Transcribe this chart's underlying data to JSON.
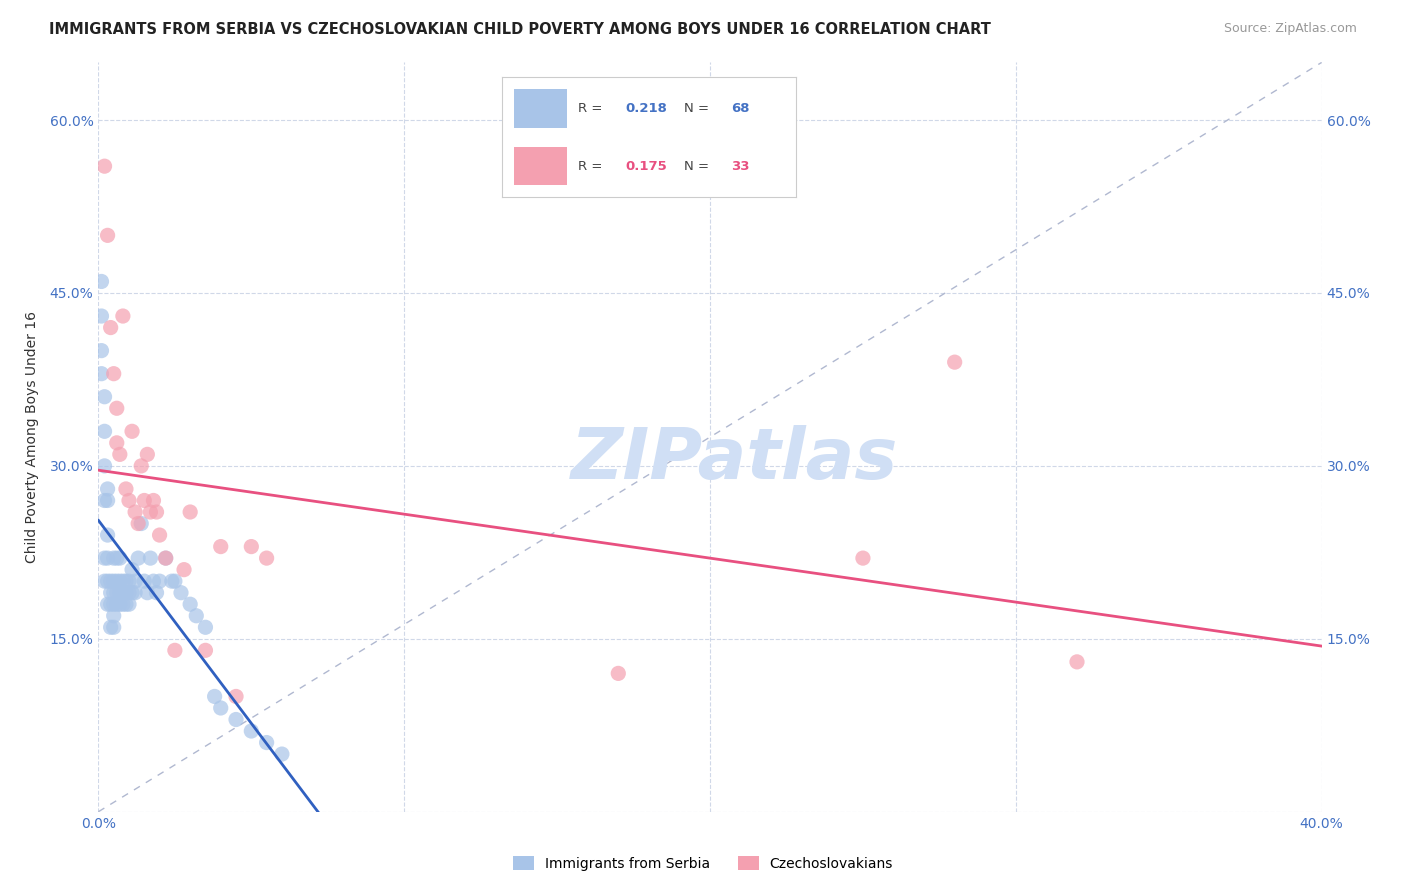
{
  "title": "IMMIGRANTS FROM SERBIA VS CZECHOSLOVAKIAN CHILD POVERTY AMONG BOYS UNDER 16 CORRELATION CHART",
  "source": "Source: ZipAtlas.com",
  "ylabel": "Child Poverty Among Boys Under 16",
  "xlim": [
    0.0,
    0.4
  ],
  "ylim": [
    0.0,
    0.65
  ],
  "xticks": [
    0.0,
    0.1,
    0.2,
    0.3,
    0.4
  ],
  "xticklabels": [
    "0.0%",
    "",
    "",
    "",
    "40.0%"
  ],
  "yticks": [
    0.0,
    0.15,
    0.3,
    0.45,
    0.6
  ],
  "yticklabels": [
    "",
    "15.0%",
    "30.0%",
    "45.0%",
    "60.0%"
  ],
  "serbia_color": "#a8c4e8",
  "czech_color": "#f4a0b0",
  "serbia_line_color": "#3060c0",
  "czech_line_color": "#e85080",
  "diag_line_color": "#b0b8d0",
  "watermark_color": "#d0dff5",
  "serbia_r": "0.218",
  "serbia_n": "68",
  "czech_r": "0.175",
  "czech_n": "33",
  "serbia_x": [
    0.001,
    0.001,
    0.001,
    0.001,
    0.002,
    0.002,
    0.002,
    0.002,
    0.002,
    0.002,
    0.003,
    0.003,
    0.003,
    0.003,
    0.003,
    0.003,
    0.004,
    0.004,
    0.004,
    0.004,
    0.005,
    0.005,
    0.005,
    0.005,
    0.005,
    0.005,
    0.006,
    0.006,
    0.006,
    0.006,
    0.007,
    0.007,
    0.007,
    0.007,
    0.008,
    0.008,
    0.008,
    0.009,
    0.009,
    0.009,
    0.01,
    0.01,
    0.01,
    0.011,
    0.011,
    0.012,
    0.012,
    0.013,
    0.014,
    0.015,
    0.016,
    0.017,
    0.018,
    0.019,
    0.02,
    0.022,
    0.024,
    0.025,
    0.027,
    0.03,
    0.032,
    0.035,
    0.038,
    0.04,
    0.045,
    0.05,
    0.055,
    0.06
  ],
  "serbia_y": [
    0.46,
    0.43,
    0.4,
    0.38,
    0.36,
    0.33,
    0.3,
    0.27,
    0.22,
    0.2,
    0.28,
    0.27,
    0.24,
    0.22,
    0.2,
    0.18,
    0.2,
    0.19,
    0.18,
    0.16,
    0.22,
    0.2,
    0.19,
    0.18,
    0.17,
    0.16,
    0.22,
    0.2,
    0.19,
    0.18,
    0.22,
    0.2,
    0.19,
    0.18,
    0.2,
    0.19,
    0.18,
    0.2,
    0.19,
    0.18,
    0.2,
    0.19,
    0.18,
    0.21,
    0.19,
    0.2,
    0.19,
    0.22,
    0.25,
    0.2,
    0.19,
    0.22,
    0.2,
    0.19,
    0.2,
    0.22,
    0.2,
    0.2,
    0.19,
    0.18,
    0.17,
    0.16,
    0.1,
    0.09,
    0.08,
    0.07,
    0.06,
    0.05
  ],
  "czech_x": [
    0.002,
    0.003,
    0.004,
    0.005,
    0.006,
    0.006,
    0.007,
    0.008,
    0.009,
    0.01,
    0.011,
    0.012,
    0.013,
    0.014,
    0.015,
    0.016,
    0.017,
    0.018,
    0.019,
    0.02,
    0.022,
    0.025,
    0.028,
    0.03,
    0.035,
    0.04,
    0.045,
    0.05,
    0.055,
    0.17,
    0.25,
    0.28,
    0.32
  ],
  "czech_y": [
    0.56,
    0.5,
    0.42,
    0.38,
    0.35,
    0.32,
    0.31,
    0.43,
    0.28,
    0.27,
    0.33,
    0.26,
    0.25,
    0.3,
    0.27,
    0.31,
    0.26,
    0.27,
    0.26,
    0.24,
    0.22,
    0.14,
    0.21,
    0.26,
    0.14,
    0.23,
    0.1,
    0.23,
    0.22,
    0.12,
    0.22,
    0.39,
    0.13
  ]
}
